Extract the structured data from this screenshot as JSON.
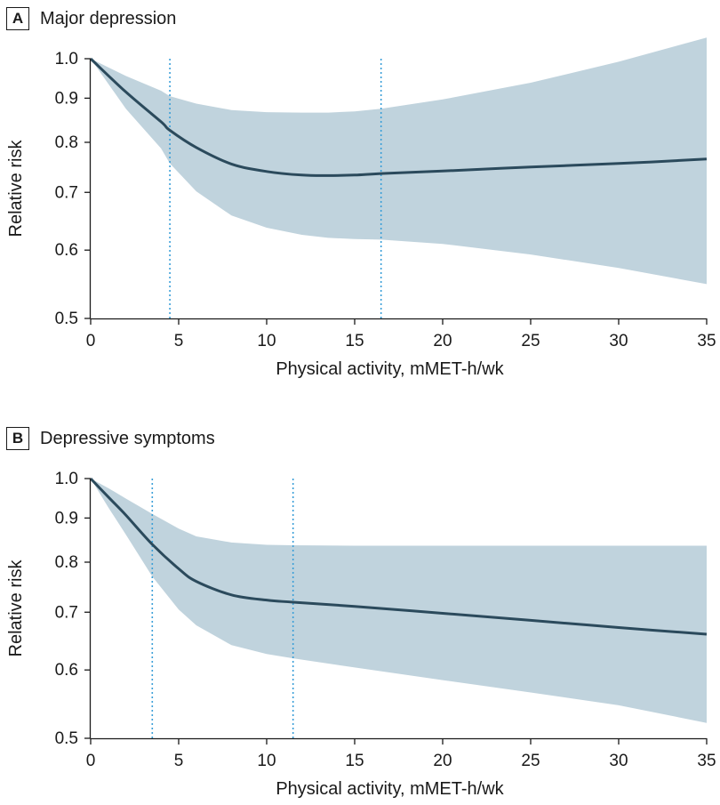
{
  "colors": {
    "band": "#c0d3dd",
    "line": "#2b4a5c",
    "cutoff": "#3b9fd8",
    "axis": "#1a1a1a"
  },
  "chart_data": [
    {
      "type": "line",
      "panel_label": "A",
      "title": "Major depression",
      "xlabel": "Physical activity, mMET-h/wk",
      "ylabel": "Relative risk",
      "xlim": [
        0,
        35
      ],
      "ylim": [
        0.5,
        1.0
      ],
      "y_scale": "log",
      "x_ticks": [
        "0",
        "5",
        "10",
        "15",
        "20",
        "25",
        "30",
        "35"
      ],
      "y_ticks": [
        "0.5",
        "0.6",
        "0.7",
        "0.8",
        "0.9",
        "1.0"
      ],
      "grid": false,
      "reference_lines_x": [
        4.5,
        16.5
      ],
      "x": [
        0,
        2,
        4,
        4.5,
        6,
        8,
        10,
        12,
        13.5,
        15,
        16.5,
        20,
        25,
        30,
        35
      ],
      "estimate": [
        1.0,
        0.915,
        0.845,
        0.826,
        0.789,
        0.755,
        0.74,
        0.733,
        0.732,
        0.733,
        0.736,
        0.741,
        0.749,
        0.756,
        0.765
      ],
      "ci_upper": [
        1.0,
        0.955,
        0.918,
        0.905,
        0.887,
        0.872,
        0.867,
        0.866,
        0.866,
        0.869,
        0.875,
        0.897,
        0.938,
        0.992,
        1.058
      ],
      "ci_lower": [
        1.0,
        0.875,
        0.787,
        0.756,
        0.702,
        0.658,
        0.637,
        0.625,
        0.62,
        0.618,
        0.617,
        0.61,
        0.593,
        0.572,
        0.548
      ]
    },
    {
      "type": "line",
      "panel_label": "B",
      "title": "Depressive symptoms",
      "xlabel": "Physical activity, mMET-h/wk",
      "ylabel": "Relative risk",
      "xlim": [
        0,
        35
      ],
      "ylim": [
        0.5,
        1.0
      ],
      "y_scale": "log",
      "x_ticks": [
        "0",
        "5",
        "10",
        "15",
        "20",
        "25",
        "30",
        "35"
      ],
      "y_ticks": [
        "0.5",
        "0.6",
        "0.7",
        "0.8",
        "0.9",
        "1.0"
      ],
      "grid": false,
      "reference_lines_x": [
        3.5,
        11.5
      ],
      "x": [
        0,
        1,
        2,
        3.5,
        5,
        6,
        8,
        10,
        11.5,
        15,
        20,
        25,
        30,
        35
      ],
      "estimate": [
        1.0,
        0.952,
        0.907,
        0.839,
        0.786,
        0.76,
        0.733,
        0.723,
        0.719,
        0.711,
        0.698,
        0.685,
        0.672,
        0.66
      ],
      "ci_upper": [
        1.0,
        0.975,
        0.948,
        0.91,
        0.875,
        0.857,
        0.843,
        0.838,
        0.837,
        0.836,
        0.836,
        0.836,
        0.836,
        0.836
      ],
      "ci_lower": [
        1.0,
        0.926,
        0.861,
        0.77,
        0.705,
        0.676,
        0.641,
        0.626,
        0.619,
        0.604,
        0.584,
        0.565,
        0.546,
        0.521
      ]
    }
  ]
}
